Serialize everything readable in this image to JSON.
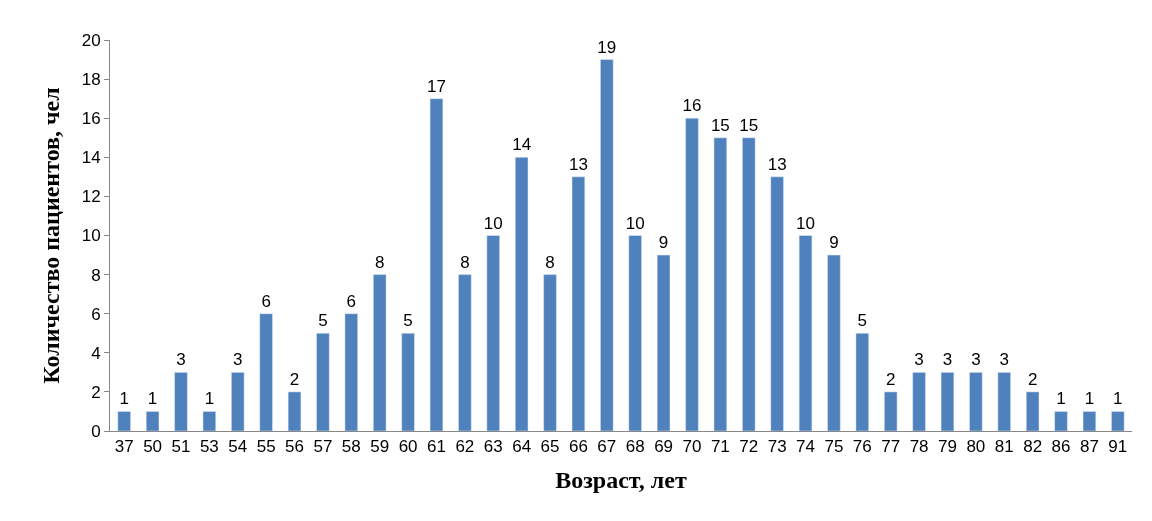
{
  "chart_data": {
    "type": "bar",
    "xlabel": "Возраст, лет",
    "ylabel": "Количество пациентов, чел",
    "categories": [
      "37",
      "50",
      "51",
      "53",
      "54",
      "55",
      "56",
      "57",
      "58",
      "59",
      "60",
      "61",
      "62",
      "63",
      "64",
      "65",
      "66",
      "67",
      "68",
      "69",
      "70",
      "71",
      "72",
      "73",
      "74",
      "75",
      "76",
      "77",
      "78",
      "79",
      "80",
      "81",
      "82",
      "86",
      "87",
      "91"
    ],
    "values": [
      1,
      1,
      3,
      1,
      3,
      6,
      2,
      5,
      6,
      8,
      5,
      17,
      8,
      10,
      14,
      8,
      13,
      19,
      10,
      9,
      16,
      15,
      15,
      13,
      10,
      9,
      5,
      2,
      3,
      3,
      3,
      3,
      2,
      1,
      1,
      1
    ],
    "color": "#4f81bd",
    "ylim": [
      0,
      20
    ],
    "yticks": [
      0,
      2,
      4,
      6,
      8,
      10,
      12,
      14,
      16,
      18,
      20
    ],
    "data_labels": true,
    "legend": false
  }
}
